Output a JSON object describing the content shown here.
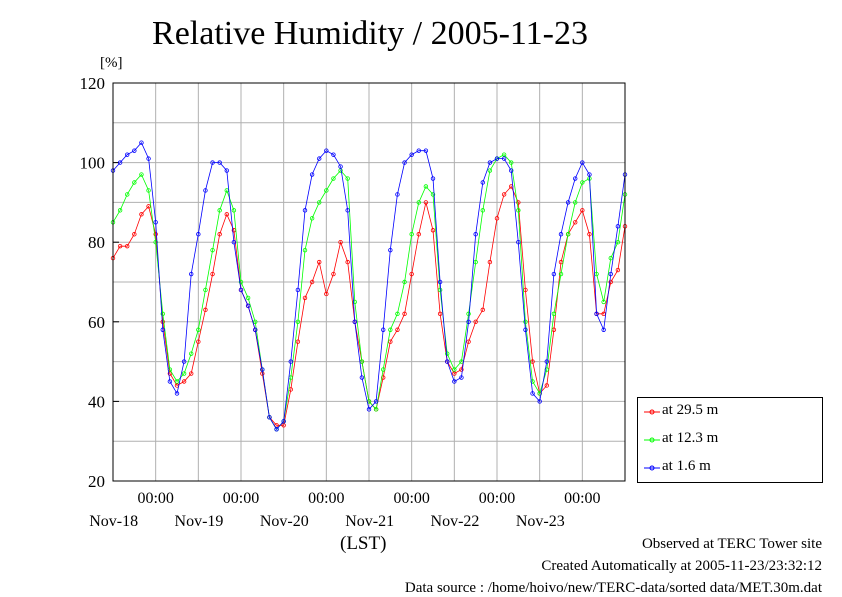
{
  "chart_data": {
    "type": "line",
    "title": "Relative Humidity / 2005-11-23",
    "ylabel": "[%]",
    "xlabel": "(LST)",
    "ylim": [
      20,
      120
    ],
    "yticks": [
      20,
      40,
      60,
      80,
      100,
      120
    ],
    "xlim_hours": [
      0,
      144
    ],
    "xticks": [
      {
        "time": "00:00",
        "date": "Nov-18"
      },
      {
        "time": "00:00",
        "date": "Nov-19"
      },
      {
        "time": "00:00",
        "date": "Nov-20"
      },
      {
        "time": "00:00",
        "date": "Nov-21"
      },
      {
        "time": "00:00",
        "date": "Nov-22"
      },
      {
        "time": "00:00",
        "date": "Nov-23"
      }
    ],
    "grid": true,
    "legend_position": "bottom-right, outside plot",
    "series": [
      {
        "name": "at 29.5 m",
        "color": "#ff0000",
        "x": [
          0,
          2,
          4,
          6,
          8,
          10,
          12,
          14,
          16,
          18,
          20,
          22,
          24,
          26,
          28,
          30,
          32,
          34,
          36,
          38,
          40,
          42,
          44,
          46,
          48,
          50,
          52,
          54,
          56,
          58,
          60,
          62,
          64,
          66,
          68,
          70,
          72,
          74,
          76,
          78,
          80,
          82,
          84,
          86,
          88,
          90,
          92,
          94,
          96,
          98,
          100,
          102,
          104,
          106,
          108,
          110,
          112,
          114,
          116,
          118,
          120,
          122,
          124,
          126,
          128,
          130,
          132,
          134,
          136,
          138,
          140,
          142,
          144
        ],
        "y": [
          76,
          79,
          79,
          82,
          87,
          89,
          82,
          60,
          47,
          44,
          45,
          47,
          55,
          63,
          72,
          82,
          87,
          83,
          68,
          64,
          58,
          47,
          36,
          34,
          34,
          43,
          55,
          66,
          70,
          75,
          67,
          72,
          80,
          75,
          60,
          50,
          40,
          38,
          46,
          55,
          58,
          62,
          72,
          82,
          90,
          83,
          62,
          50,
          47,
          48,
          55,
          60,
          63,
          75,
          86,
          92,
          94,
          90,
          68,
          50,
          42,
          44,
          58,
          75,
          82,
          85,
          88,
          82,
          62,
          62,
          70,
          73,
          84
        ]
      },
      {
        "name": "at 12.3 m",
        "color": "#00ff00",
        "x": [
          0,
          2,
          4,
          6,
          8,
          10,
          12,
          14,
          16,
          18,
          20,
          22,
          24,
          26,
          28,
          30,
          32,
          34,
          36,
          38,
          40,
          42,
          44,
          46,
          48,
          50,
          52,
          54,
          56,
          58,
          60,
          62,
          64,
          66,
          68,
          70,
          72,
          74,
          76,
          78,
          80,
          82,
          84,
          86,
          88,
          90,
          92,
          94,
          96,
          98,
          100,
          102,
          104,
          106,
          108,
          110,
          112,
          114,
          116,
          118,
          120,
          122,
          124,
          126,
          128,
          130,
          132,
          134,
          136,
          138,
          140,
          142,
          144
        ],
        "y": [
          85,
          88,
          92,
          95,
          97,
          93,
          80,
          62,
          48,
          45,
          47,
          52,
          58,
          68,
          78,
          88,
          93,
          88,
          70,
          66,
          60,
          48,
          36,
          33,
          35,
          46,
          60,
          78,
          86,
          90,
          93,
          96,
          98,
          96,
          65,
          50,
          40,
          38,
          48,
          58,
          62,
          70,
          82,
          90,
          94,
          92,
          68,
          52,
          48,
          50,
          62,
          75,
          88,
          98,
          101,
          102,
          100,
          88,
          60,
          45,
          42,
          48,
          62,
          72,
          82,
          90,
          95,
          96,
          72,
          65,
          76,
          80,
          92
        ]
      },
      {
        "name": "at 1.6 m",
        "color": "#0000ff",
        "x": [
          0,
          2,
          4,
          6,
          8,
          10,
          12,
          14,
          16,
          18,
          20,
          22,
          24,
          26,
          28,
          30,
          32,
          34,
          36,
          38,
          40,
          42,
          44,
          46,
          48,
          50,
          52,
          54,
          56,
          58,
          60,
          62,
          64,
          66,
          68,
          70,
          72,
          74,
          76,
          78,
          80,
          82,
          84,
          86,
          88,
          90,
          92,
          94,
          96,
          98,
          100,
          102,
          104,
          106,
          108,
          110,
          112,
          114,
          116,
          118,
          120,
          122,
          124,
          126,
          128,
          130,
          132,
          134,
          136,
          138,
          140,
          142,
          144
        ],
        "y": [
          98,
          100,
          102,
          103,
          105,
          101,
          85,
          58,
          45,
          42,
          50,
          72,
          82,
          93,
          100,
          100,
          98,
          80,
          68,
          64,
          58,
          48,
          36,
          33,
          35,
          50,
          68,
          88,
          97,
          101,
          103,
          102,
          99,
          88,
          60,
          46,
          38,
          40,
          58,
          78,
          92,
          100,
          102,
          103,
          103,
          96,
          70,
          50,
          45,
          46,
          60,
          82,
          95,
          100,
          101,
          101,
          98,
          80,
          58,
          42,
          40,
          50,
          72,
          82,
          90,
          96,
          100,
          97,
          62,
          58,
          72,
          84,
          97
        ]
      }
    ]
  },
  "footer": {
    "line1": "Observed at TERC Tower site",
    "line2": "Created Automatically at 2005-11-23/23:32:12",
    "line3": "Data source : /home/hoivo/new/TERC-data/sorted  data/MET.30m.dat"
  }
}
